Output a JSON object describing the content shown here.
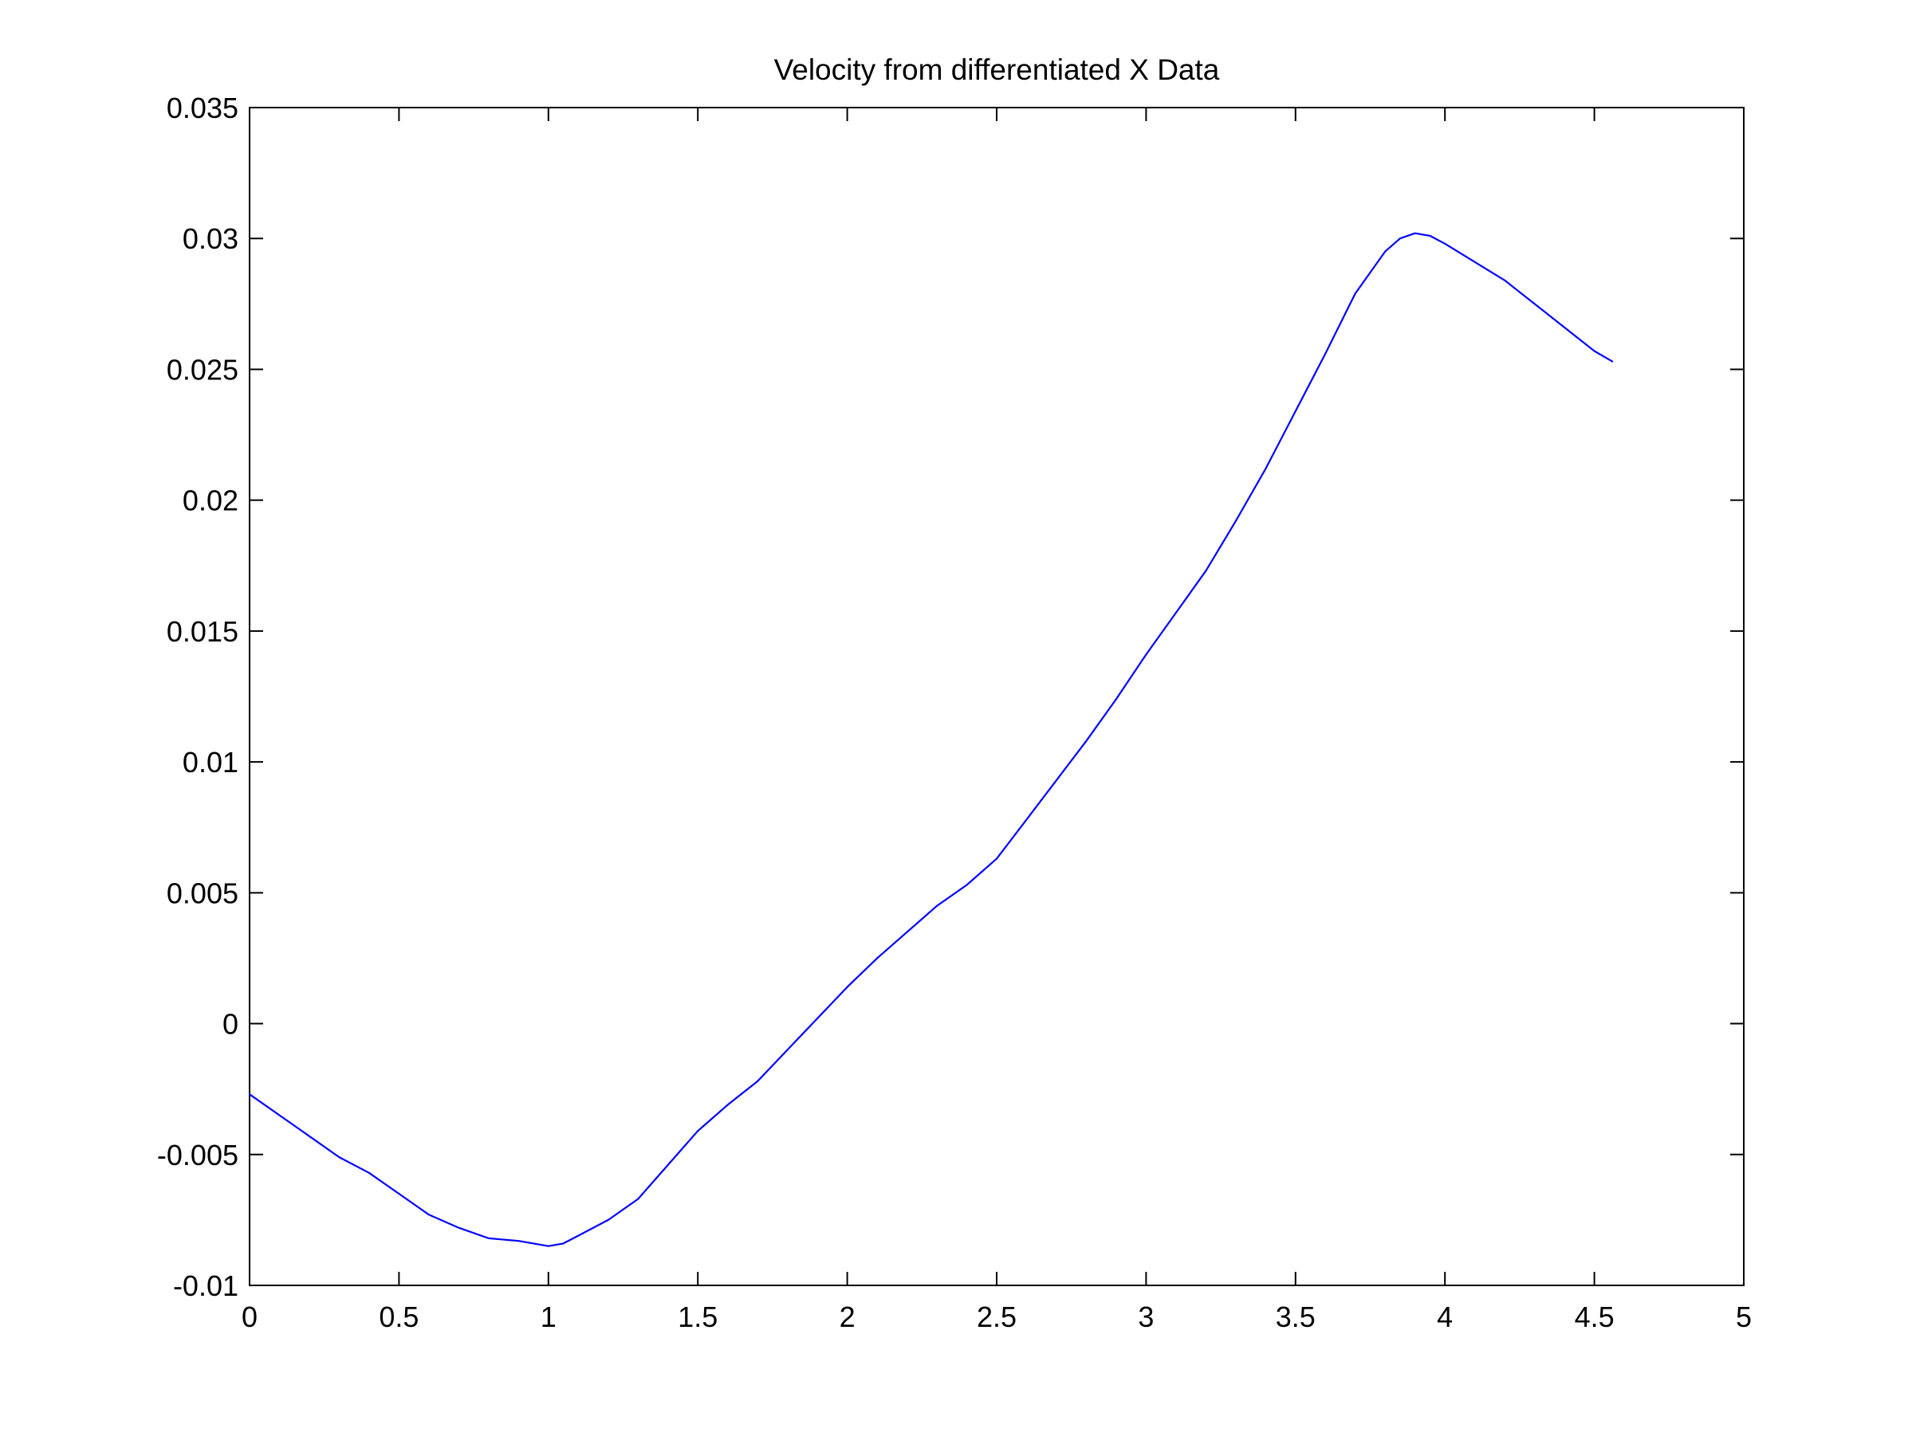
{
  "chart_data": {
    "type": "line",
    "title": "Velocity from differentiated X Data",
    "xlabel": "",
    "ylabel": "",
    "xlim": [
      0,
      5
    ],
    "ylim": [
      -0.01,
      0.035
    ],
    "xticks": [
      0,
      0.5,
      1,
      1.5,
      2,
      2.5,
      3,
      3.5,
      4,
      4.5,
      5
    ],
    "xtick_labels": [
      "0",
      "0.5",
      "1",
      "1.5",
      "2",
      "2.5",
      "3",
      "3.5",
      "4",
      "4.5",
      "5"
    ],
    "yticks": [
      -0.01,
      -0.005,
      0,
      0.005,
      0.01,
      0.015,
      0.02,
      0.025,
      0.03,
      0.035
    ],
    "ytick_labels": [
      "-0.01",
      "-0.005",
      "0",
      "0.005",
      "0.01",
      "0.015",
      "0.02",
      "0.025",
      "0.03",
      "0.035"
    ],
    "grid": false,
    "legend": false,
    "line_color": "#0000ff",
    "series": [
      {
        "x": [
          0,
          0.1,
          0.2,
          0.3,
          0.4,
          0.5,
          0.6,
          0.7,
          0.8,
          0.9,
          0.95,
          1.0,
          1.05,
          1.1,
          1.2,
          1.3,
          1.4,
          1.5,
          1.6,
          1.7,
          1.8,
          1.9,
          2.0,
          2.1,
          2.2,
          2.3,
          2.4,
          2.5,
          2.6,
          2.7,
          2.8,
          2.9,
          3.0,
          3.1,
          3.2,
          3.3,
          3.4,
          3.5,
          3.6,
          3.7,
          3.8,
          3.85,
          3.9,
          3.95,
          4.0,
          4.1,
          4.2,
          4.3,
          4.4,
          4.5,
          4.56
        ],
        "y": [
          -0.0027,
          -0.0035,
          -0.0043,
          -0.0051,
          -0.0057,
          -0.0065,
          -0.0073,
          -0.0078,
          -0.0082,
          -0.0083,
          -0.0084,
          -0.0085,
          -0.0084,
          -0.0081,
          -0.0075,
          -0.0067,
          -0.0054,
          -0.0041,
          -0.0031,
          -0.0022,
          -0.001,
          0.0002,
          0.0014,
          0.0025,
          0.0035,
          0.0045,
          0.0053,
          0.0063,
          0.0078,
          0.0093,
          0.0108,
          0.0124,
          0.0141,
          0.0157,
          0.0173,
          0.0192,
          0.0212,
          0.0234,
          0.0256,
          0.0279,
          0.0295,
          0.03,
          0.0302,
          0.0301,
          0.0298,
          0.0291,
          0.0284,
          0.0275,
          0.0266,
          0.0257,
          0.0253
        ]
      }
    ]
  }
}
